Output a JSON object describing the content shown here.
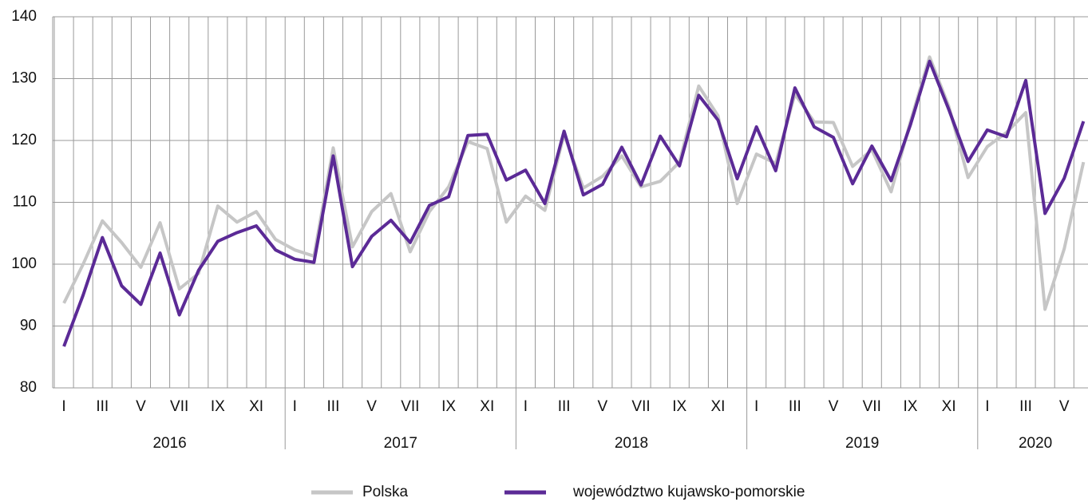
{
  "chart_data": {
    "type": "line",
    "categories": [
      "I",
      null,
      "III",
      null,
      "V",
      null,
      "VII",
      null,
      "IX",
      null,
      "XI",
      null,
      "I",
      null,
      "III",
      null,
      "V",
      null,
      "VII",
      null,
      "IX",
      null,
      "XI",
      null,
      "I",
      null,
      "III",
      null,
      "V",
      null,
      "VII",
      null,
      "IX",
      null,
      "XI",
      null,
      "I",
      null,
      "III",
      null,
      "V",
      null,
      "VII",
      null,
      "IX",
      null,
      "XI",
      null,
      "I",
      null,
      "III",
      null,
      "V",
      null
    ],
    "years": [
      "2016",
      "2017",
      "2018",
      "2019",
      "2020"
    ],
    "ylim": [
      80,
      140
    ],
    "yticks": [
      80,
      90,
      100,
      110,
      120,
      130,
      140
    ],
    "grid": true,
    "legend": "bottom",
    "series": [
      {
        "name": "Polska",
        "color": "#c6c6c6",
        "values": [
          93.7,
          100,
          107,
          103.5,
          99.5,
          106.7,
          96,
          98.5,
          109.4,
          106.8,
          108.5,
          104,
          102.3,
          101.3,
          118.8,
          102.8,
          108.5,
          111.4,
          102,
          108.5,
          112.5,
          119.8,
          118.7,
          106.8,
          111,
          108.7,
          121,
          112.3,
          114.2,
          117.5,
          112.5,
          113.4,
          116.5,
          128.8,
          124,
          109.8,
          117.8,
          116.3,
          127.5,
          123,
          122.9,
          115.8,
          118.5,
          111.7,
          123,
          133.5,
          125.5,
          114,
          119,
          121.3,
          124.5,
          92.7,
          102.5,
          116.5
        ]
      },
      {
        "name": "województwo kujawsko-pomorskie",
        "color": "#5b2a96",
        "values": [
          86.7,
          95,
          104.3,
          96.5,
          93.5,
          101.8,
          91.8,
          99,
          103.7,
          105.1,
          106.2,
          102.3,
          100.8,
          100.3,
          117.5,
          99.6,
          104.5,
          107.1,
          103.5,
          109.5,
          110.9,
          120.8,
          121,
          113.6,
          115.2,
          109.8,
          121.5,
          111.2,
          112.9,
          118.9,
          112.8,
          120.7,
          115.9,
          127.3,
          123.3,
          113.8,
          122.2,
          115.1,
          128.5,
          122.2,
          120.5,
          113,
          119.1,
          113.5,
          122.5,
          132.8,
          125,
          116.6,
          121.7,
          120.6,
          129.7,
          108.2,
          113.9,
          123.1
        ]
      }
    ]
  }
}
